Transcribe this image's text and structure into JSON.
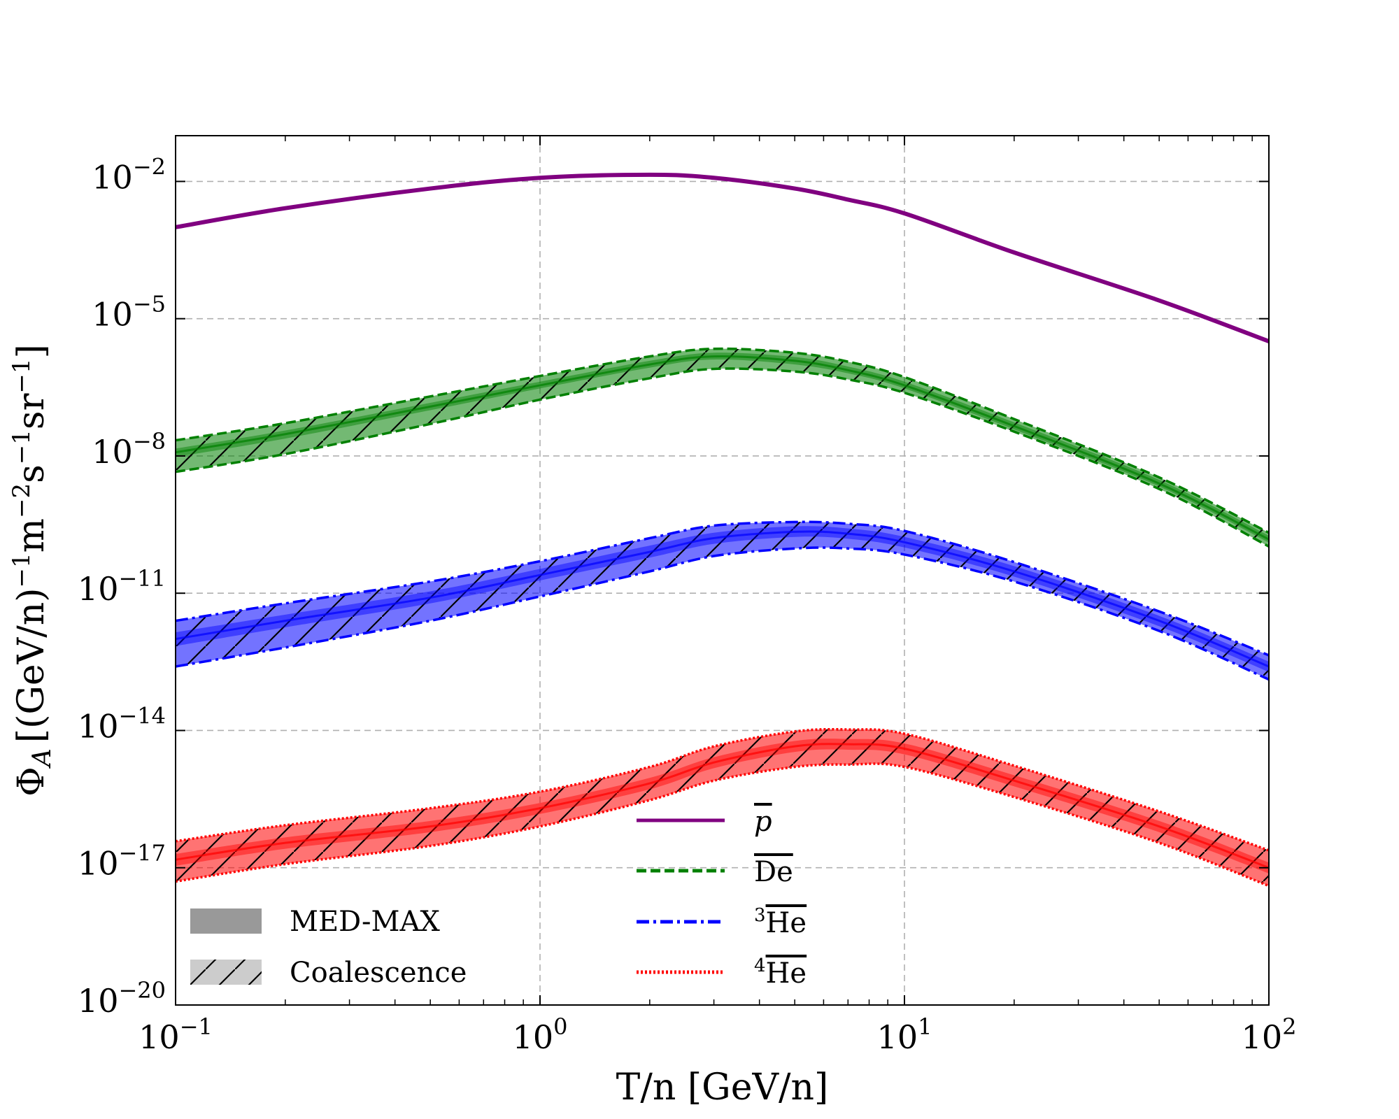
{
  "chart_data": {
    "type": "line",
    "xscale": "log",
    "yscale": "log",
    "xlim": [
      0.1,
      100
    ],
    "ylim": [
      1e-20,
      0.1
    ],
    "xlabel": "T/n [GeV/n]",
    "ylabel": {
      "symbol": "Φ",
      "sub": "A",
      "units": "[(GeV/n)",
      "units_sup1": "−1",
      "units_m": "m",
      "units_sup2": "−2",
      "units_s": "s",
      "units_sup3": "−1",
      "units_sr": "sr",
      "units_sup4": "−1",
      "units_close": "]"
    },
    "grid": true,
    "x_ticks": [
      {
        "value": 0.1,
        "base": "10",
        "exp": "−1"
      },
      {
        "value": 1,
        "base": "10",
        "exp": "0"
      },
      {
        "value": 10,
        "base": "10",
        "exp": "1"
      },
      {
        "value": 100,
        "base": "10",
        "exp": "2"
      }
    ],
    "y_ticks": [
      {
        "value": 0.01,
        "base": "10",
        "exp": "−2"
      },
      {
        "value": 1e-05,
        "base": "10",
        "exp": "−5"
      },
      {
        "value": 1e-08,
        "base": "10",
        "exp": "−8"
      },
      {
        "value": 1e-11,
        "base": "10",
        "exp": "−11"
      },
      {
        "value": 1e-14,
        "base": "10",
        "exp": "−14"
      },
      {
        "value": 1e-17,
        "base": "10",
        "exp": "−17"
      },
      {
        "value": 1e-20,
        "base": "10",
        "exp": "−20"
      }
    ],
    "x": [
      0.1,
      0.2,
      0.5,
      1,
      2,
      3,
      5,
      7,
      10,
      20,
      50,
      100
    ],
    "series": [
      {
        "name": "p",
        "label": "p",
        "label_style": "italic-overline",
        "linestyle": "solid",
        "color": "#800080",
        "values": [
          0.001,
          0.0026,
          0.007,
          0.012,
          0.014,
          0.012,
          0.007,
          0.004,
          0.002,
          0.00028,
          2.5e-05,
          3.2e-06
        ],
        "med_max": null,
        "coalescence": null
      },
      {
        "name": "De",
        "label": "De",
        "label_style": "overline",
        "linestyle": "dashed",
        "color": "#008000",
        "values": [
          1.2e-08,
          3e-08,
          1.2e-07,
          3.5e-07,
          1e-06,
          1.5e-06,
          1.2e-06,
          7.5e-07,
          3.5e-07,
          4.5e-08,
          2.5e-09,
          1.5e-10
        ],
        "med_max": {
          "lower": [
            9.5e-09,
            2.4e-08,
            1e-07,
            3e-07,
            8.5e-07,
            1.28e-06,
            1e-06,
            6.4e-07,
            3e-07,
            3.8e-08,
            2.15e-09,
            1.28e-10
          ],
          "upper": [
            1.45e-08,
            3.6e-08,
            1.45e-07,
            4.2e-07,
            1.2e-06,
            1.8e-06,
            1.45e-06,
            9e-07,
            4.2e-07,
            5.4e-08,
            3e-09,
            1.8e-10
          ]
        },
        "coalescence": {
          "lower": [
            4.5e-09,
            1.1e-08,
            5e-08,
            1.7e-07,
            5e-07,
            8e-07,
            7e-07,
            4.7e-07,
            2.4e-07,
            3.4e-08,
            1.9e-09,
            1.05e-10
          ],
          "upper": [
            2.2e-08,
            5.2e-08,
            2e-07,
            5.6e-07,
            1.5e-06,
            2.2e-06,
            1.8e-06,
            1.15e-06,
            5.3e-07,
            6.4e-08,
            3.4e-09,
            2.1e-10
          ]
        }
      },
      {
        "name": "3He",
        "label": "He",
        "label_prefix": "3",
        "label_style": "overline",
        "linestyle": "dashdot",
        "color": "#0000ff",
        "values": [
          1e-12,
          2.5e-12,
          8e-12,
          2.5e-11,
          8e-11,
          1.6e-10,
          2.2e-10,
          2e-10,
          1.3e-10,
          3e-11,
          2.5e-12,
          2.5e-13
        ],
        "med_max": {
          "lower": [
            7e-13,
            1.8e-12,
            6e-12,
            1.9e-11,
            6e-11,
            1.2e-10,
            1.7e-10,
            1.55e-10,
            1e-10,
            2.3e-11,
            1.9e-12,
            1.9e-13
          ],
          "upper": [
            1.4e-12,
            3.4e-12,
            1.1e-11,
            3.4e-11,
            1.1e-10,
            2.1e-10,
            2.9e-10,
            2.6e-10,
            1.7e-10,
            3.9e-11,
            3.2e-12,
            3.2e-13
          ]
        },
        "coalescence": {
          "lower": [
            2.5e-13,
            6.5e-13,
            2.5e-12,
            8.5e-12,
            3e-11,
            6.5e-11,
            9.5e-11,
            9.5e-11,
            7e-11,
            1.8e-11,
            1.5e-12,
            1.3e-13
          ],
          "upper": [
            2.5e-12,
            6e-12,
            1.8e-11,
            5e-11,
            1.6e-10,
            3e-10,
            3.6e-10,
            3.3e-10,
            2.3e-10,
            4.8e-11,
            4e-12,
            4.4e-13
          ]
        }
      },
      {
        "name": "4He",
        "label": "He",
        "label_prefix": "4",
        "label_style": "overline",
        "linestyle": "dotted",
        "color": "#ff0000",
        "values": [
          1.5e-17,
          3.5e-17,
          8e-17,
          2e-16,
          7e-16,
          2e-15,
          4.5e-15,
          5e-15,
          4e-15,
          8e-16,
          8e-17,
          1e-17
        ],
        "med_max": {
          "lower": [
            1.1e-17,
            2.6e-17,
            6e-17,
            1.5e-16,
            5.2e-16,
            1.5e-15,
            3.4e-15,
            3.8e-15,
            3e-15,
            6e-16,
            6e-17,
            7.5e-18
          ],
          "upper": [
            2e-17,
            4.6e-17,
            1.05e-16,
            2.6e-16,
            9.2e-16,
            2.6e-15,
            5.9e-15,
            6.5e-15,
            5.2e-15,
            1.05e-15,
            1.05e-16,
            1.3e-17
          ]
        },
        "coalescence": {
          "lower": [
            5e-18,
            1.2e-17,
            3e-17,
            8e-17,
            3e-16,
            8e-16,
            1.6e-15,
            1.8e-15,
            1.6e-15,
            3.5e-16,
            3.5e-17,
            4e-18
          ],
          "upper": [
            3.8e-17,
            8.5e-17,
            2e-16,
            4.6e-16,
            1.6e-15,
            4.5e-15,
            9.5e-15,
            1.05e-14,
            8.5e-15,
            1.7e-15,
            1.7e-16,
            2.4e-17
          ]
        }
      }
    ],
    "band_legend": [
      {
        "label": "MED-MAX",
        "style": "solid-gray"
      },
      {
        "label": "Coalescence",
        "style": "hatched-lightgray"
      }
    ],
    "legend_position": "bottom-center"
  }
}
